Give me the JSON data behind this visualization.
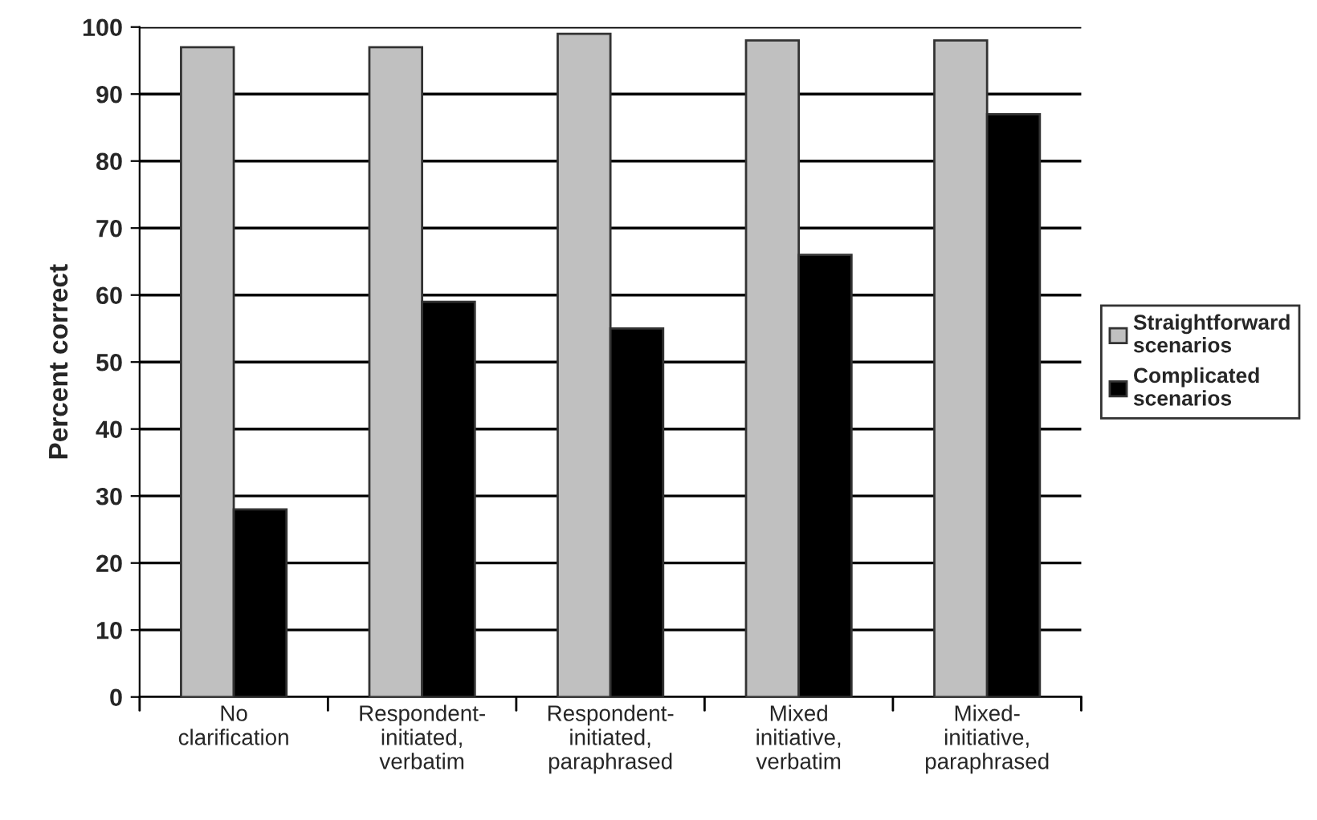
{
  "chart_data": {
    "type": "bar",
    "ylabel": "Percent correct",
    "categories": [
      "No\nclarification",
      "Respondent-\ninitiated,\nverbatim",
      "Respondent-\ninitiated,\nparaphrased",
      "Mixed\ninitiative,\nverbatim",
      "Mixed-\ninitiative,\nparaphrased"
    ],
    "series": [
      {
        "name": "Straightforward\nscenarios",
        "color": "#c0c0c0",
        "values": [
          97,
          97,
          99,
          98,
          98
        ]
      },
      {
        "name": "Complicated\nscenarios",
        "color": "#000000",
        "values": [
          28,
          59,
          55,
          66,
          87
        ]
      }
    ],
    "ylim": [
      0,
      100
    ],
    "yticks": [
      0,
      10,
      20,
      30,
      40,
      50,
      60,
      70,
      80,
      90,
      100
    ],
    "grid": "y",
    "legend": "right"
  }
}
